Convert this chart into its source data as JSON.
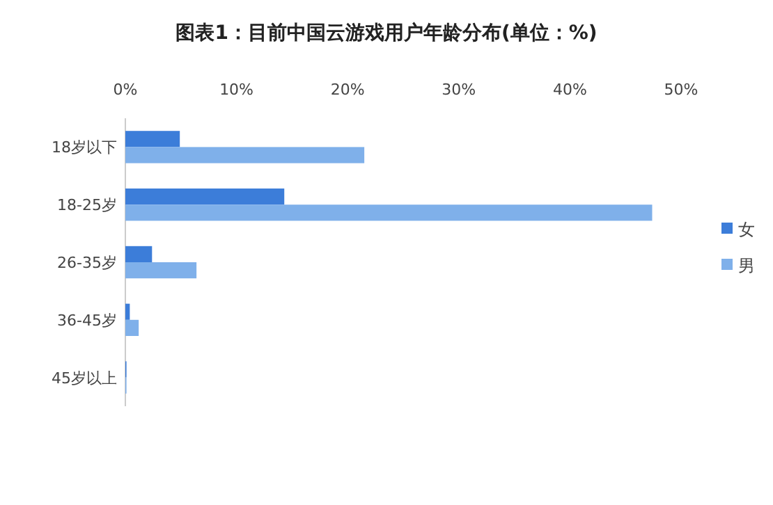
{
  "chart_data": {
    "type": "bar",
    "orientation": "horizontal",
    "title": "图表1：目前中国云游戏用户年龄分布(单位：%)",
    "categories": [
      "18岁以下",
      "18-25岁",
      "26-35岁",
      "36-45岁",
      "45岁以上"
    ],
    "series": [
      {
        "name": "女",
        "color": "#3c7dd9",
        "values": [
          4.9,
          14.3,
          2.4,
          0.4,
          0.1
        ]
      },
      {
        "name": "男",
        "color": "#7fb0ea",
        "values": [
          21.5,
          47.4,
          6.4,
          1.2,
          0.1
        ]
      }
    ],
    "xlim": [
      0,
      50
    ],
    "xticks": [
      {
        "value": 0,
        "label": "0%"
      },
      {
        "value": 10,
        "label": "10%"
      },
      {
        "value": 20,
        "label": "20%"
      },
      {
        "value": 30,
        "label": "30%"
      },
      {
        "value": 40,
        "label": "40%"
      },
      {
        "value": 50,
        "label": "50%"
      }
    ],
    "grid": false,
    "legend": "right"
  }
}
